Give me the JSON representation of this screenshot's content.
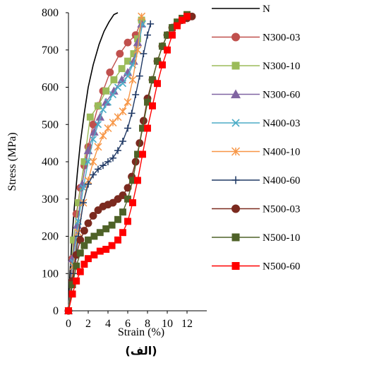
{
  "chart_data": {
    "type": "line",
    "title": "",
    "xlabel": "Strain (%)",
    "ylabel": "Stress (MPa)",
    "caption": "(الف)",
    "xlim": [
      0,
      14
    ],
    "ylim": [
      0,
      800
    ],
    "xticks": [
      "0",
      "2",
      "4",
      "6",
      "8",
      "10",
      "12"
    ],
    "yticks": [
      "0",
      "100",
      "200",
      "300",
      "400",
      "500",
      "600",
      "700",
      "800"
    ],
    "grid": false,
    "legend_position": "right",
    "series": [
      {
        "name": "N",
        "color": "#000000",
        "marker": "none",
        "x": [
          0,
          0.15,
          0.35,
          0.6,
          0.9,
          1.2,
          1.6,
          2.0,
          2.5,
          3.1,
          3.6,
          4.1,
          4.6,
          5.0
        ],
        "y": [
          0,
          100,
          190,
          280,
          370,
          450,
          530,
          600,
          660,
          715,
          750,
          775,
          795,
          800
        ]
      },
      {
        "name": "N300-03",
        "color": "#c0504d",
        "marker": "circle",
        "x": [
          0,
          0.4,
          0.8,
          1.2,
          1.6,
          2.0,
          2.5,
          3.0,
          3.5,
          4.2,
          5.2,
          6.0,
          6.8,
          7.4
        ],
        "y": [
          0,
          140,
          260,
          330,
          390,
          440,
          500,
          550,
          590,
          640,
          690,
          720,
          740,
          780
        ]
      },
      {
        "name": "N300-10",
        "color": "#9bbb59",
        "marker": "square",
        "x": [
          0,
          0.5,
          1.0,
          1.6,
          2.2,
          3.0,
          3.8,
          4.6,
          5.4,
          6.0,
          6.6,
          7.0,
          7.4
        ],
        "y": [
          0,
          190,
          290,
          400,
          520,
          550,
          590,
          620,
          650,
          670,
          690,
          730,
          780
        ]
      },
      {
        "name": "N300-60",
        "color": "#8064a2",
        "marker": "triangle",
        "x": [
          0,
          0.4,
          0.9,
          1.4,
          2.0,
          2.6,
          3.2,
          3.8,
          4.6,
          5.4,
          6.0,
          6.6,
          7.0,
          7.4
        ],
        "y": [
          0,
          140,
          230,
          340,
          430,
          480,
          520,
          560,
          590,
          620,
          640,
          670,
          720,
          770
        ]
      },
      {
        "name": "N400-03",
        "color": "#4bacc6",
        "marker": "x",
        "x": [
          0,
          0.5,
          1.0,
          1.5,
          2.0,
          2.5,
          3.0,
          3.5,
          4.0,
          4.5,
          5.0,
          5.5,
          6.0,
          6.5,
          7.0,
          7.5
        ],
        "y": [
          0,
          130,
          240,
          330,
          400,
          460,
          500,
          540,
          560,
          580,
          600,
          610,
          630,
          660,
          700,
          770
        ]
      },
      {
        "name": "N400-10",
        "color": "#f79646",
        "marker": "asterisk",
        "x": [
          0,
          0.5,
          1.0,
          1.5,
          2.0,
          2.5,
          3.0,
          3.5,
          4.0,
          4.5,
          5.0,
          5.5,
          6.0,
          6.5,
          7.0,
          7.4
        ],
        "y": [
          0,
          120,
          210,
          290,
          350,
          400,
          440,
          470,
          490,
          505,
          520,
          535,
          560,
          620,
          700,
          790
        ]
      },
      {
        "name": "N400-60",
        "color": "#1f3864",
        "marker": "plus",
        "x": [
          0,
          0.5,
          1.0,
          1.5,
          2.0,
          2.5,
          3.0,
          3.5,
          4.0,
          4.5,
          5.0,
          5.5,
          6.0,
          6.4,
          6.8,
          7.2,
          7.6,
          8.0,
          8.3
        ],
        "y": [
          0,
          100,
          200,
          290,
          340,
          365,
          380,
          390,
          400,
          410,
          430,
          455,
          490,
          530,
          580,
          630,
          690,
          740,
          770
        ]
      },
      {
        "name": "N500-03",
        "color": "#7b2a1f",
        "marker": "circle",
        "x": [
          0,
          0.4,
          0.8,
          1.2,
          1.6,
          2.0,
          2.5,
          3.0,
          3.5,
          4.0,
          4.5,
          5.0,
          5.5,
          6.0,
          6.4,
          6.8,
          7.2,
          7.6,
          8.0,
          8.5,
          9.0,
          9.5,
          10.0,
          10.5,
          11.0,
          11.5,
          12.0,
          12.5
        ],
        "y": [
          0,
          80,
          150,
          190,
          215,
          235,
          255,
          270,
          280,
          285,
          290,
          300,
          310,
          330,
          360,
          400,
          450,
          510,
          570,
          620,
          670,
          710,
          740,
          760,
          770,
          780,
          785,
          790
        ]
      },
      {
        "name": "N500-10",
        "color": "#4f6228",
        "marker": "square",
        "x": [
          0,
          0.4,
          0.8,
          1.2,
          1.6,
          2.0,
          2.6,
          3.2,
          3.8,
          4.4,
          5.0,
          5.5,
          6.0,
          6.5,
          7.0,
          7.5,
          8.0,
          8.5,
          9.0,
          9.5,
          10.0,
          10.5,
          11.0,
          11.5,
          12.0
        ],
        "y": [
          0,
          70,
          120,
          155,
          175,
          190,
          200,
          210,
          220,
          230,
          245,
          265,
          300,
          350,
          420,
          490,
          560,
          620,
          670,
          710,
          740,
          760,
          775,
          785,
          795
        ]
      },
      {
        "name": "N500-60",
        "color": "#ff0000",
        "marker": "square",
        "x": [
          0,
          0.4,
          0.8,
          1.2,
          1.6,
          2.0,
          2.6,
          3.2,
          3.8,
          4.4,
          5.0,
          5.5,
          6.0,
          6.5,
          7.0,
          7.5,
          8.0,
          8.5,
          9.0,
          9.5,
          10.0,
          10.5,
          11.0,
          11.5,
          12.0
        ],
        "y": [
          0,
          45,
          80,
          105,
          125,
          140,
          150,
          160,
          165,
          175,
          190,
          210,
          240,
          290,
          350,
          420,
          490,
          550,
          610,
          660,
          700,
          740,
          765,
          780,
          790
        ]
      }
    ]
  }
}
